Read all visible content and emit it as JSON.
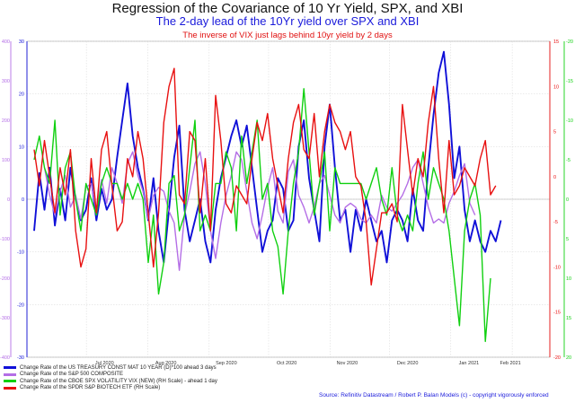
{
  "titles": {
    "main": "Regression of the Covariance of 10 Yr Yield, SPX, and XBI",
    "sub": "The 2-day lead of the 10Yr yield over SPX and XBI",
    "note": "The inverse of VIX just lags behind 10yr yield by 2 days"
  },
  "source": "Source: Refinitiv Datastream / Robert P. Balan Models (c) - copyright vigorously enforced",
  "legend": [
    {
      "label": "Change Rate of the US TREASURY CONST MAT 10 YEAR (D)*100 ahead 3 days",
      "color": "#1010d8"
    },
    {
      "label": "Change Rate of the S&P 500 COMPOSITE",
      "color": "#b46ee6"
    },
    {
      "label": "Change Rate of the CBOE SPX VOLATILITY VIX (NEW) (RH Scale) - ahead 1 day",
      "color": "#10d010"
    },
    {
      "label": "Change Rate of the SPDR S&P BIOTECH ETF (RH Scale)",
      "color": "#e81010"
    }
  ],
  "chart_data": {
    "type": "line",
    "x_range": [
      "2020-06-01",
      "2021-02-20"
    ],
    "x_ticks": [
      "Jul 2020",
      "Aug 2020",
      "Sep 2020",
      "Oct 2020",
      "Nov 2020",
      "Dec 2020",
      "Jan 2021",
      "Feb 2021"
    ],
    "axes": {
      "left_outer": {
        "color": "#b46ee6",
        "range": [
          -400,
          400
        ],
        "ticks": [
          "400",
          "300",
          "200",
          "100",
          "0",
          "-100",
          "-200",
          "-300",
          "-400"
        ]
      },
      "left_inner": {
        "color": "#1010d8",
        "range": [
          -30,
          30
        ],
        "ticks": [
          "30",
          "20",
          "10",
          "0",
          "-10",
          "-20",
          "-30"
        ]
      },
      "right_inner": {
        "color": "#e81010",
        "range": [
          -20,
          15
        ],
        "ticks": [
          "15",
          "10",
          "5",
          "0",
          "-5",
          "-10",
          "-15",
          "-20"
        ]
      },
      "right_outer": {
        "color": "#10d010",
        "range": [
          20,
          -20
        ],
        "ticks": [
          "-20",
          "-15",
          "-10",
          "-5",
          "0",
          "5",
          "10",
          "15",
          "20"
        ]
      }
    },
    "grid": true,
    "series": [
      {
        "name": "Change Rate of the US TREASURY CONST MAT 10 YEAR (D)*100 ahead 3 days",
        "color": "#1010d8",
        "axis": "left_inner",
        "values": [
          -6,
          5,
          -2,
          6,
          -5,
          2,
          -4,
          6,
          0,
          -4,
          -2,
          4,
          -4,
          2,
          -2,
          0,
          8,
          15,
          22,
          12,
          6,
          2,
          -4,
          4,
          -6,
          -12,
          -2,
          8,
          14,
          -2,
          -8,
          -4,
          0,
          -8,
          -12,
          -2,
          4,
          8,
          12,
          15,
          10,
          14,
          6,
          -2,
          -10,
          -6,
          -4,
          4,
          2,
          -6,
          -4,
          10,
          15,
          4,
          -2,
          -8,
          10,
          18,
          6,
          -4,
          -2,
          -10,
          -2,
          -6,
          0,
          -4,
          -8,
          -6,
          -12,
          -4,
          -2,
          -4,
          -8,
          2,
          -4,
          -6,
          6,
          16,
          24,
          28,
          18,
          4,
          10,
          -2,
          -8,
          -4,
          -8,
          -10,
          -6,
          -8,
          -4
        ],
        "step": 2
      },
      {
        "name": "Change Rate of the S&P 500 COMPOSITE",
        "color": "#b46ee6",
        "axis": "left_outer",
        "values": [
          80,
          10,
          -40,
          20,
          60,
          -20,
          10,
          -50,
          30,
          40,
          -30,
          50,
          -10,
          80,
          40,
          -10,
          90,
          120,
          60,
          20,
          -50,
          10,
          30,
          20,
          -30,
          -60,
          -180,
          -40,
          20,
          90,
          120,
          40,
          -80,
          -150,
          -60,
          10,
          60,
          120,
          100,
          20,
          -60,
          -100,
          -40,
          30,
          80,
          -30,
          -60,
          70,
          100,
          10,
          -20,
          -60,
          -20,
          40,
          60,
          10,
          -40,
          -60,
          -20,
          -10,
          -20,
          -50,
          -60,
          -40,
          -60,
          10,
          -20,
          -30,
          -10,
          10,
          40,
          80,
          100,
          40,
          -20,
          -60,
          -50,
          -60,
          -10,
          20,
          60,
          90,
          -10,
          -40
        ],
        "start": 4,
        "step": 2
      },
      {
        "name": "Change Rate of the CBOE SPX VOLATILITY VIX (NEW) (RH Scale) - ahead 1 day",
        "color": "#10d010",
        "axis": "right_outer",
        "values": [
          -5,
          -8,
          -4,
          -2,
          -10,
          2,
          -4,
          -6,
          0,
          4,
          -2,
          0,
          2,
          -2,
          -4,
          -2,
          -2,
          0,
          -2,
          0,
          -2,
          0,
          8,
          2,
          12,
          8,
          -2,
          -3,
          4,
          2,
          -4,
          -10,
          4,
          2,
          4,
          -2,
          -2,
          -6,
          -4,
          4,
          -8,
          -2,
          -6,
          -10,
          0,
          -2,
          4,
          6,
          12,
          4,
          -2,
          -6,
          -14,
          -6,
          2,
          -2,
          -6,
          4,
          -4,
          -2,
          -2,
          -2,
          -2,
          -2,
          0,
          -2,
          -4,
          0,
          2,
          -4,
          2,
          4,
          2,
          4,
          -2,
          -6,
          0,
          -4,
          -2,
          0,
          4,
          10,
          16,
          4,
          0,
          -2,
          2,
          18,
          10
        ],
        "step": 2
      },
      {
        "name": "Change Rate of the SPDR S&P BIOTECH ETF (RH Scale)",
        "color": "#e81010",
        "axis": "right_inner",
        "values": [
          3,
          -1,
          4,
          0,
          -4,
          1,
          -2,
          3,
          -6,
          -10,
          -8,
          2,
          -4,
          3,
          5,
          -1,
          -6,
          -5,
          2,
          0,
          5,
          2,
          -4,
          -10,
          -4,
          6,
          10,
          12,
          -2,
          -3,
          5,
          4,
          -4,
          2,
          -6,
          9,
          4,
          -3,
          -4,
          -1,
          -2,
          -3,
          2,
          6,
          4,
          7,
          2,
          -1,
          -4,
          2,
          6,
          8,
          3,
          2,
          7,
          0,
          5,
          8,
          6,
          5,
          3,
          5,
          0,
          -1,
          -5,
          -12,
          -8,
          -4,
          -4,
          -3,
          -5,
          8,
          3,
          -2,
          2,
          0,
          6,
          10,
          2,
          -4,
          4,
          -2,
          -1,
          1,
          0,
          -1,
          2,
          4,
          -2,
          -1
        ],
        "step": 2
      }
    ]
  }
}
